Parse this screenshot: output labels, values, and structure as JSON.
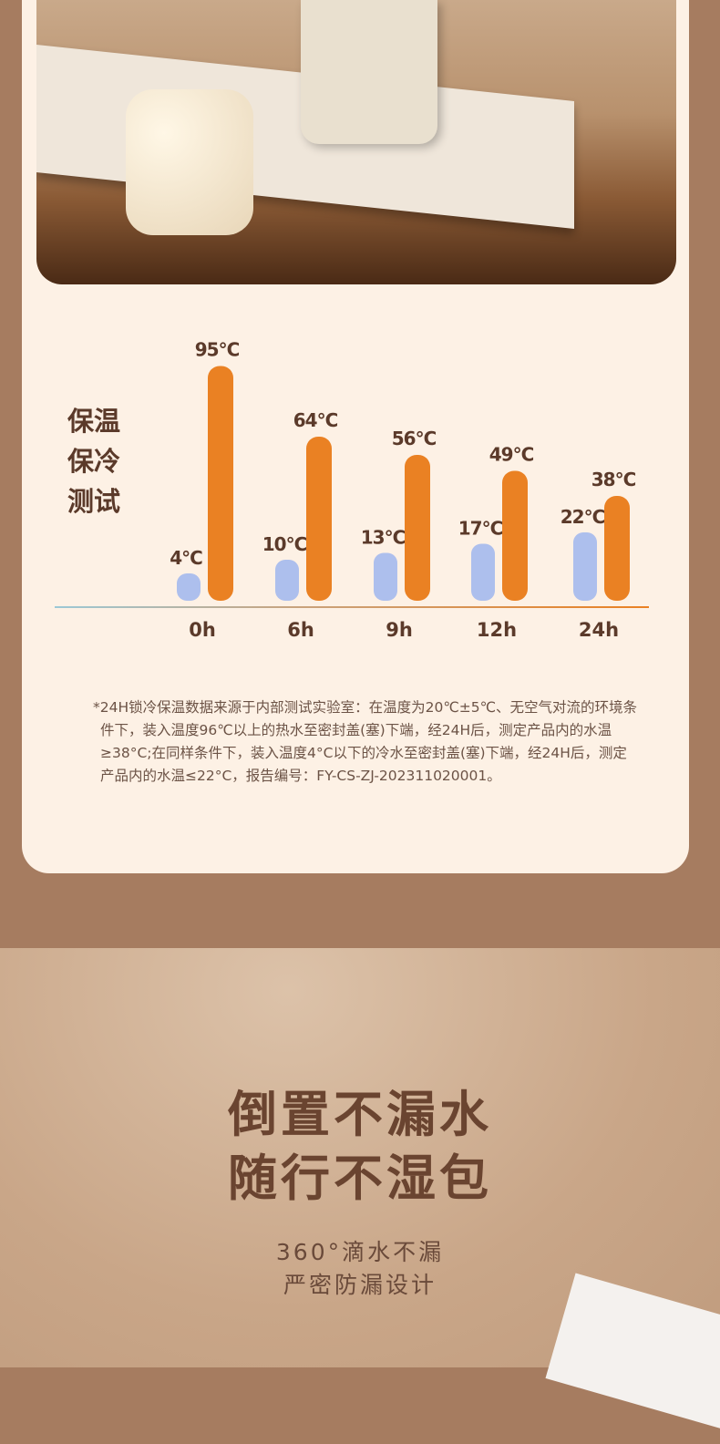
{
  "chart_data": {
    "type": "bar",
    "title": "保温保冷测试",
    "title_lines": [
      "保温",
      "保冷",
      "测试"
    ],
    "categories": [
      "0h",
      "6h",
      "9h",
      "12h",
      "24h"
    ],
    "series": [
      {
        "values": [
          4,
          10,
          13,
          17,
          22
        ],
        "labels": [
          "4°C",
          "10°C",
          "13°C",
          "17°C",
          "22°C"
        ],
        "color": "#adbfed"
      },
      {
        "values": [
          95,
          64,
          56,
          49,
          38
        ],
        "labels": [
          "95°C",
          "64°C",
          "56°C",
          "49°C",
          "38°C"
        ],
        "color": "#ea8123"
      }
    ],
    "unit": "°C",
    "grid": false
  },
  "note": "*24H锁冷保温数据来源于内部测试实验室：在温度为20℃±5℃、无空气对流的环境条件下，装入温度96℃以上的热水至密封盖(塞)下端，经24H后，测定产品内的水温≥38°C;在同样条件下，装入温度4°C以下的冷水至密封盖(塞)下端，经24H后，测定产品内的水温≤22°C，报告编号：FY-CS-ZJ-202311020001。",
  "section2": {
    "headline1": "倒置不漏水",
    "headline2": "随行不湿包",
    "sub1": "360°滴水不漏",
    "sub2": "严密防漏设计"
  }
}
